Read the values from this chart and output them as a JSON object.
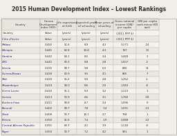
{
  "title": "2015 Human Development Index – Lowest Rankings",
  "col_headers": [
    "Human\nDevelopment\nIndex (HDI)",
    "Life expectancy\nat birth",
    "Expected years\nof schooling",
    "Mean years of\nschooling",
    "Gross national\nincome (GNI)\nper capita",
    "GNI per capita\nrank minus HDI\nrank"
  ],
  "col_subheaders": [
    "Value",
    "(years)",
    "(years)",
    "(years)",
    "(2011 PPP $)",
    ""
  ],
  "countries": [
    "Country",
    "Côte d'Ivoire",
    "Malawi",
    "Ethiopia",
    "Gambia",
    "DRC",
    "Liberia",
    "Guinea-Bissau",
    "Mali",
    "Mozambique",
    "Sierra Leone",
    "Guinea",
    "Burkina Faso",
    "Burundi",
    "Chad",
    "Eritrea",
    "Central African Republic",
    "Niger"
  ],
  "data": [
    [
      "Value",
      "(years)",
      "(years)",
      "(years)",
      "(2011 PPP $)",
      ""
    ],
    [
      "0.492",
      "51.6",
      "8.9",
      "4.3",
      "3,171",
      "-24"
    ],
    [
      "0.445",
      "62.8",
      "10.8",
      "4.3",
      "747",
      "13"
    ],
    [
      "0.442",
      "64.1",
      "8.5",
      "2.4",
      "1,428",
      "2"
    ],
    [
      "0.441",
      "60.2",
      "8.8",
      "2.8",
      "1,507",
      "-2"
    ],
    [
      "0.435",
      "58.7",
      "9.8",
      "6.0",
      "680",
      "11"
    ],
    [
      "0.430",
      "60.9",
      "9.5",
      "4.1",
      "805",
      "7"
    ],
    [
      "0.420",
      "55.2",
      "9.0",
      "2.8",
      "1,262",
      "-1"
    ],
    [
      "0.419",
      "58.0",
      "8.6",
      "2.0",
      "1,580",
      "-8"
    ],
    [
      "0.416",
      "55.1",
      "9.3",
      "3.2",
      "1,123",
      "1"
    ],
    [
      "0.413",
      "50.9",
      "8.6",
      "3.1",
      "1,780",
      "-18"
    ],
    [
      "0.411",
      "58.8",
      "8.7",
      "2.4",
      "1,096",
      "0"
    ],
    [
      "0.402",
      "58.7",
      "7.8",
      "1.4",
      "1,591",
      "-13"
    ],
    [
      "0.400",
      "56.7",
      "10.1",
      "2.7",
      "758",
      "1"
    ],
    [
      "0.392",
      "51.6",
      "7.4",
      "1.9",
      "2,088",
      "-22"
    ],
    [
      "0.391",
      "63.7",
      "4.1",
      "3.9",
      "1,130",
      "-8"
    ],
    [
      "0.350",
      "50.7",
      "7.2",
      "4.2",
      "581",
      "1"
    ],
    [
      "0.348",
      "61.4",
      "5.4",
      "1.5",
      "908",
      "-5"
    ]
  ],
  "bg_color": "#f0ede8",
  "title_bg": "#d4cfc8",
  "header_bg": "#e8e4de",
  "row_colors": [
    "#f5f2ee",
    "#eae7e2"
  ],
  "border_color": "#b0a898"
}
